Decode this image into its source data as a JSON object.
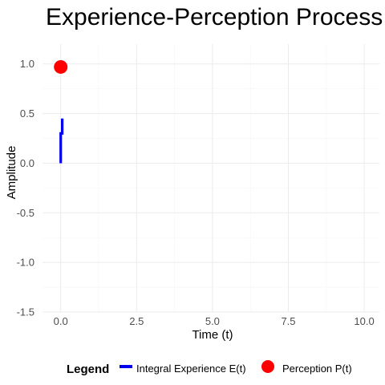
{
  "chart_data": {
    "type": "line",
    "title": "Experience-Perception Process",
    "xlabel": "Time (t)",
    "ylabel": "Amplitude",
    "xlim": [
      -0.6,
      10.5
    ],
    "ylim": [
      -1.5,
      1.2
    ],
    "x_ticks": [
      0.0,
      2.5,
      5.0,
      7.5,
      10.0
    ],
    "x_tick_labels": [
      "0.0",
      "2.5",
      "5.0",
      "7.5",
      "10.0"
    ],
    "y_ticks": [
      -1.5,
      -1.0,
      -0.5,
      0.0,
      0.5,
      1.0
    ],
    "y_tick_labels": [
      "-1.5",
      "-1.0",
      "-0.5",
      "0.0",
      "0.5",
      "1.0"
    ],
    "grid": true,
    "legend": {
      "title": "Legend",
      "position": "bottom",
      "items": [
        "Integral Experience E(t)",
        "Perception P(t)"
      ]
    },
    "series": [
      {
        "name": "Integral Experience E(t)",
        "kind": "line",
        "color": "#0000ee",
        "points": [
          [
            0.0,
            0.0
          ],
          [
            0.0,
            0.3
          ],
          [
            0.05,
            0.3
          ],
          [
            0.05,
            0.45
          ]
        ]
      },
      {
        "name": "Perception P(t)",
        "kind": "point",
        "color": "#ff0000",
        "points": [
          [
            0.0,
            0.97
          ]
        ]
      }
    ]
  }
}
